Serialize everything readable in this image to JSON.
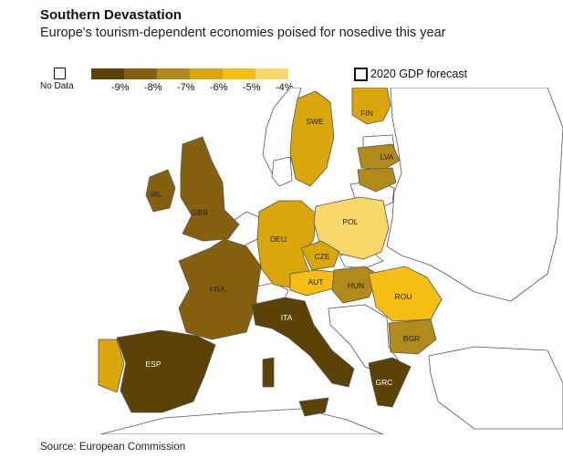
{
  "title": "Southern Devastation",
  "subtitle": "Europe's tourism-dependent economies poised for nosedive this year",
  "legend": {
    "no_data_label": "No Data",
    "scale_labels": [
      "-9%",
      "-8%",
      "-7%",
      "-6%",
      "-5%",
      "-4%"
    ],
    "scale_colors": [
      "#5a4305",
      "#84600f",
      "#b08a1a",
      "#d9a60c",
      "#f4bf12",
      "#f8d868"
    ],
    "frame_label": "2020 GDP forecast"
  },
  "colors": {
    "no_data": "#ffffff",
    "outline": "#555555"
  },
  "countries": [
    {
      "code": "ESP",
      "forecast_bin": "-9%"
    },
    {
      "code": "ITA",
      "forecast_bin": "-9%"
    },
    {
      "code": "GRC",
      "forecast_bin": "-9%"
    },
    {
      "code": "FRA",
      "forecast_bin": "-8%"
    },
    {
      "code": "GBR",
      "forecast_bin": "-8%"
    },
    {
      "code": "IRL",
      "forecast_bin": "-8%"
    },
    {
      "code": "BGR",
      "forecast_bin": "-7%"
    },
    {
      "code": "HUN",
      "forecast_bin": "-7%"
    },
    {
      "code": "LVA",
      "forecast_bin": "-7%"
    },
    {
      "code": "DEU",
      "forecast_bin": "-6%"
    },
    {
      "code": "SWE",
      "forecast_bin": "-6%"
    },
    {
      "code": "CZE",
      "forecast_bin": "-6%"
    },
    {
      "code": "FIN",
      "forecast_bin": "-6%"
    },
    {
      "code": "AUT",
      "forecast_bin": "-5%"
    },
    {
      "code": "ROU",
      "forecast_bin": "-5%"
    },
    {
      "code": "POL",
      "forecast_bin": "-4%"
    }
  ],
  "source": "Source: European Commission"
}
